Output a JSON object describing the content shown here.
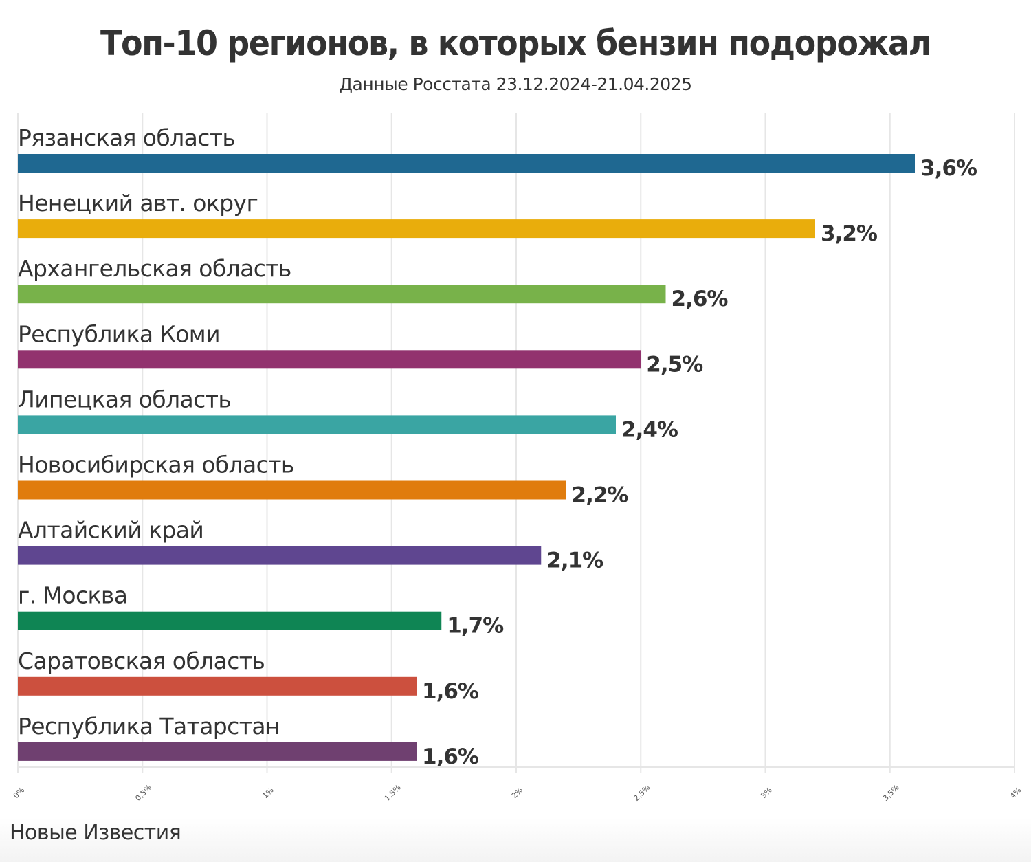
{
  "header": {
    "title": "Топ-10 регионов, в которых бензин подорожал",
    "subtitle": "Данные Росстата 23.12.2024-21.04.2025"
  },
  "footer": {
    "source": "Новые Известия"
  },
  "chart_data": {
    "type": "bar",
    "orientation": "horizontal",
    "title": "Топ-10 регионов, в которых бензин подорожал",
    "subtitle": "Данные Росстата 23.12.2024-21.04.2025",
    "xlabel": "",
    "ylabel": "",
    "xlim": [
      0,
      4
    ],
    "grid": true,
    "legend": "none",
    "categories": [
      "Рязанская область",
      "Ненецкий авт. округ",
      "Архангельская область",
      "Республика Коми",
      "Липецкая область",
      "Новосибирская область",
      "Алтайский край",
      "г. Москва",
      "Саратовская область",
      "Республика Татарстан"
    ],
    "values": [
      3.6,
      3.2,
      2.6,
      2.5,
      2.4,
      2.2,
      2.1,
      1.7,
      1.6,
      1.6
    ],
    "value_labels": [
      "3,6%",
      "3,2%",
      "2,6%",
      "2,5%",
      "2,4%",
      "2,2%",
      "2,1%",
      "1,7%",
      "1,6%",
      "1,6%"
    ],
    "colors": [
      "#1f6891",
      "#e9ad0c",
      "#78b24a",
      "#92326e",
      "#3aa5a3",
      "#e07c0d",
      "#5f4690",
      "#0f8554",
      "#cc503e",
      "#6f4070"
    ],
    "x_ticks": [
      0,
      0.5,
      1,
      1.5,
      2,
      2.5,
      3,
      3.5,
      4
    ],
    "x_tick_labels": [
      "0%",
      "0,5%",
      "1%",
      "1,5%",
      "2%",
      "2,5%",
      "3%",
      "3,5%",
      "4%"
    ],
    "unit": "%"
  }
}
